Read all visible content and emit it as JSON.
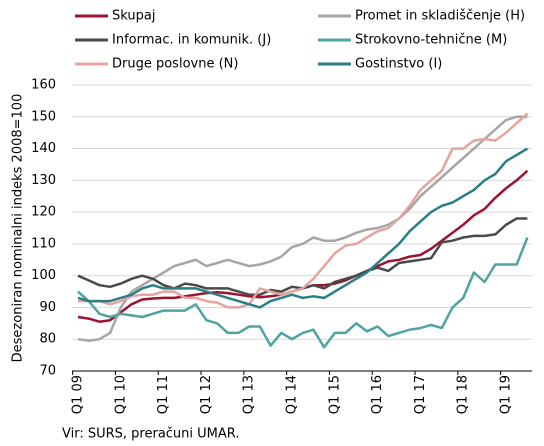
{
  "chart_data": {
    "type": "line",
    "y_label": "Desezoniran nominalni indeks 2008=100",
    "source": "Vir: SURS, preračuni UMAR.",
    "categories": [
      "Q1 09",
      null,
      null,
      null,
      "Q1 10",
      null,
      null,
      null,
      "Q1 11",
      null,
      null,
      null,
      "Q1 12",
      null,
      null,
      null,
      "Q1 13",
      null,
      null,
      null,
      "Q1 14",
      null,
      null,
      null,
      "Q1 15",
      null,
      null,
      null,
      "Q1 16",
      null,
      null,
      null,
      "Q1 17",
      null,
      null,
      null,
      "Q1 18",
      null,
      null,
      null,
      "Q1 19",
      null,
      null
    ],
    "series": [
      {
        "name": "Skupaj",
        "color": "#a0112f",
        "values": [
          87,
          86.5,
          85.5,
          86,
          88.5,
          91,
          92.5,
          92.8,
          93,
          93,
          93.5,
          94,
          94.5,
          94.8,
          94.5,
          94,
          93.5,
          93.2,
          93.5,
          94,
          95,
          96,
          97,
          97,
          97.5,
          98.5,
          100,
          101.5,
          103,
          104.5,
          105,
          106,
          106.5,
          108.5,
          111,
          113.5,
          116,
          119,
          121,
          124.5,
          127.5,
          130,
          133
        ]
      },
      {
        "name": "Promet in skladiščenje (H)",
        "color": "#a6a6a6",
        "values": [
          80,
          79.5,
          80,
          82,
          90,
          95,
          97,
          99,
          101,
          103,
          104,
          105,
          103,
          104,
          105,
          104,
          103,
          103.5,
          104.5,
          106,
          109,
          110,
          112,
          111,
          111,
          112,
          113.5,
          114.5,
          115,
          116,
          118,
          121,
          125,
          128,
          131,
          134,
          137,
          140,
          143,
          146,
          149,
          150,
          150
        ]
      },
      {
        "name": "Informac. in komunik. (J)",
        "color": "#4a4a4a",
        "values": [
          100,
          98.5,
          97,
          96.5,
          97.5,
          99,
          100,
          99,
          97,
          96,
          97.5,
          97,
          96,
          96,
          96,
          95,
          94,
          94,
          95.5,
          95,
          96.5,
          96,
          97,
          96,
          98,
          99,
          100,
          101.5,
          102.5,
          101.5,
          104,
          104.5,
          105,
          105.5,
          110.5,
          111,
          112,
          112.5,
          112.5,
          113,
          116,
          118,
          118
        ]
      },
      {
        "name": "Strokovno-tehnične (M)",
        "color": "#4fa3a3",
        "values": [
          95,
          92,
          88,
          87,
          88,
          87.5,
          87,
          88,
          89,
          89,
          89,
          91,
          86,
          85,
          82,
          82,
          84,
          84,
          78,
          82,
          80,
          82,
          83,
          77.5,
          82,
          82,
          85,
          82.5,
          84,
          81,
          82,
          83,
          83.5,
          84.5,
          83.5,
          90,
          93,
          101,
          98,
          103.5,
          103.5,
          103.5,
          112
        ]
      },
      {
        "name": "Druge poslovne (N)",
        "color": "#e6a3a0",
        "values": [
          92,
          92,
          92,
          91,
          92,
          93.5,
          94,
          94,
          95,
          95,
          93,
          93,
          92,
          91.5,
          90,
          90,
          91,
          96,
          95,
          94,
          95,
          96,
          99,
          103,
          107,
          109.5,
          110,
          112,
          114,
          115,
          118,
          122,
          127,
          130,
          133,
          140,
          140,
          142.5,
          143,
          142.5,
          145,
          148,
          151
        ]
      },
      {
        "name": "Gostinstvo (I)",
        "color": "#2a7f86",
        "values": [
          93,
          92,
          92,
          92,
          93,
          94,
          96,
          97,
          96,
          96,
          96,
          96,
          95,
          94,
          93,
          92,
          91,
          90,
          92,
          93,
          94,
          93,
          93.5,
          93,
          95,
          97,
          99,
          101,
          104,
          107,
          110,
          114,
          117,
          120,
          122,
          123,
          125,
          127,
          130,
          132,
          136,
          138,
          140
        ]
      }
    ],
    "ylim": [
      70,
      160
    ],
    "yticks": [
      70,
      80,
      90,
      100,
      110,
      120,
      130,
      140,
      150,
      160
    ],
    "grid": true
  }
}
